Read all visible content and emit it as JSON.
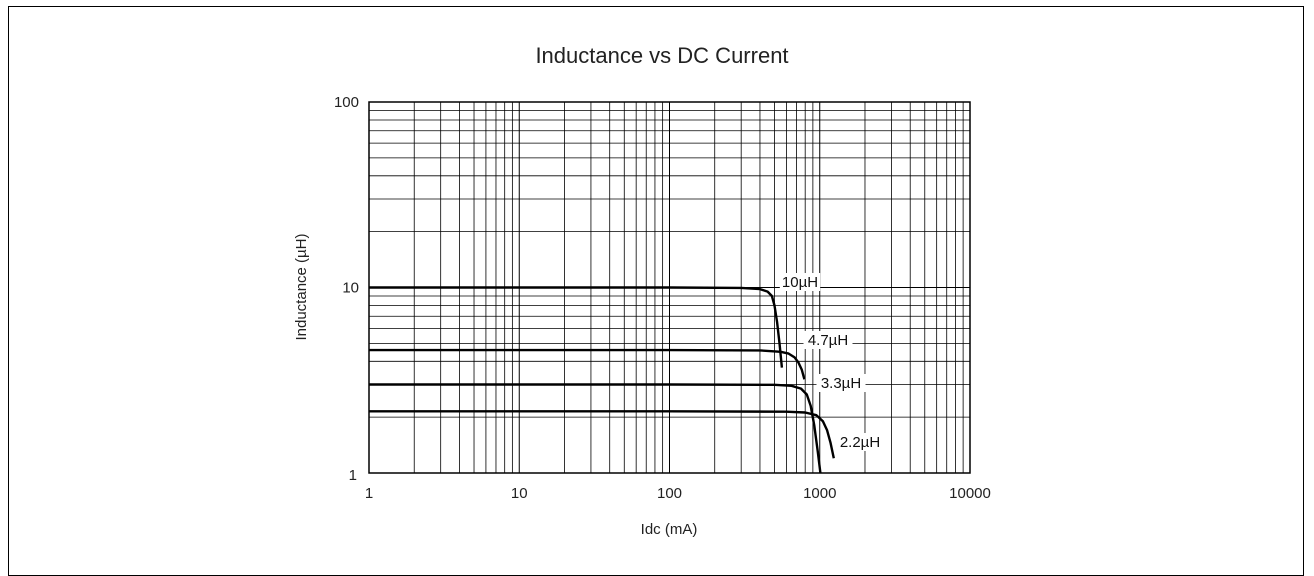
{
  "chart_data": {
    "type": "line",
    "title": "Inductance vs DC Current",
    "xlabel": "Idc (mA)",
    "ylabel": "Inductance (µH)",
    "x_scale": "log",
    "y_scale": "log",
    "xlim": [
      1,
      10000
    ],
    "ylim": [
      1,
      100
    ],
    "grid": true,
    "x_ticks": [
      "1",
      "10",
      "100",
      "1000",
      "10000"
    ],
    "y_ticks": [
      "1",
      "10",
      "100"
    ],
    "series": [
      {
        "name": "10µH",
        "x": [
          1,
          10,
          100,
          300,
          400,
          450,
          480,
          500,
          520,
          540,
          560
        ],
        "y": [
          10,
          10,
          10,
          9.95,
          9.8,
          9.5,
          9,
          8,
          6.5,
          5,
          3.7
        ]
      },
      {
        "name": "4.7µH",
        "x": [
          1,
          10,
          100,
          400,
          550,
          620,
          680,
          720,
          760,
          790
        ],
        "y": [
          4.6,
          4.6,
          4.6,
          4.58,
          4.5,
          4.4,
          4.2,
          3.95,
          3.6,
          3.2
        ]
      },
      {
        "name": "3.3µH",
        "x": [
          1,
          10,
          100,
          500,
          650,
          750,
          820,
          870,
          920,
          970,
          1010
        ],
        "y": [
          3.0,
          3.0,
          3.0,
          2.99,
          2.95,
          2.85,
          2.65,
          2.3,
          1.8,
          1.3,
          1.0
        ]
      },
      {
        "name": "2.2µH",
        "x": [
          1,
          10,
          100,
          600,
          800,
          950,
          1050,
          1120,
          1180,
          1240
        ],
        "y": [
          2.15,
          2.15,
          2.15,
          2.14,
          2.12,
          2.05,
          1.9,
          1.7,
          1.45,
          1.2
        ]
      }
    ]
  }
}
